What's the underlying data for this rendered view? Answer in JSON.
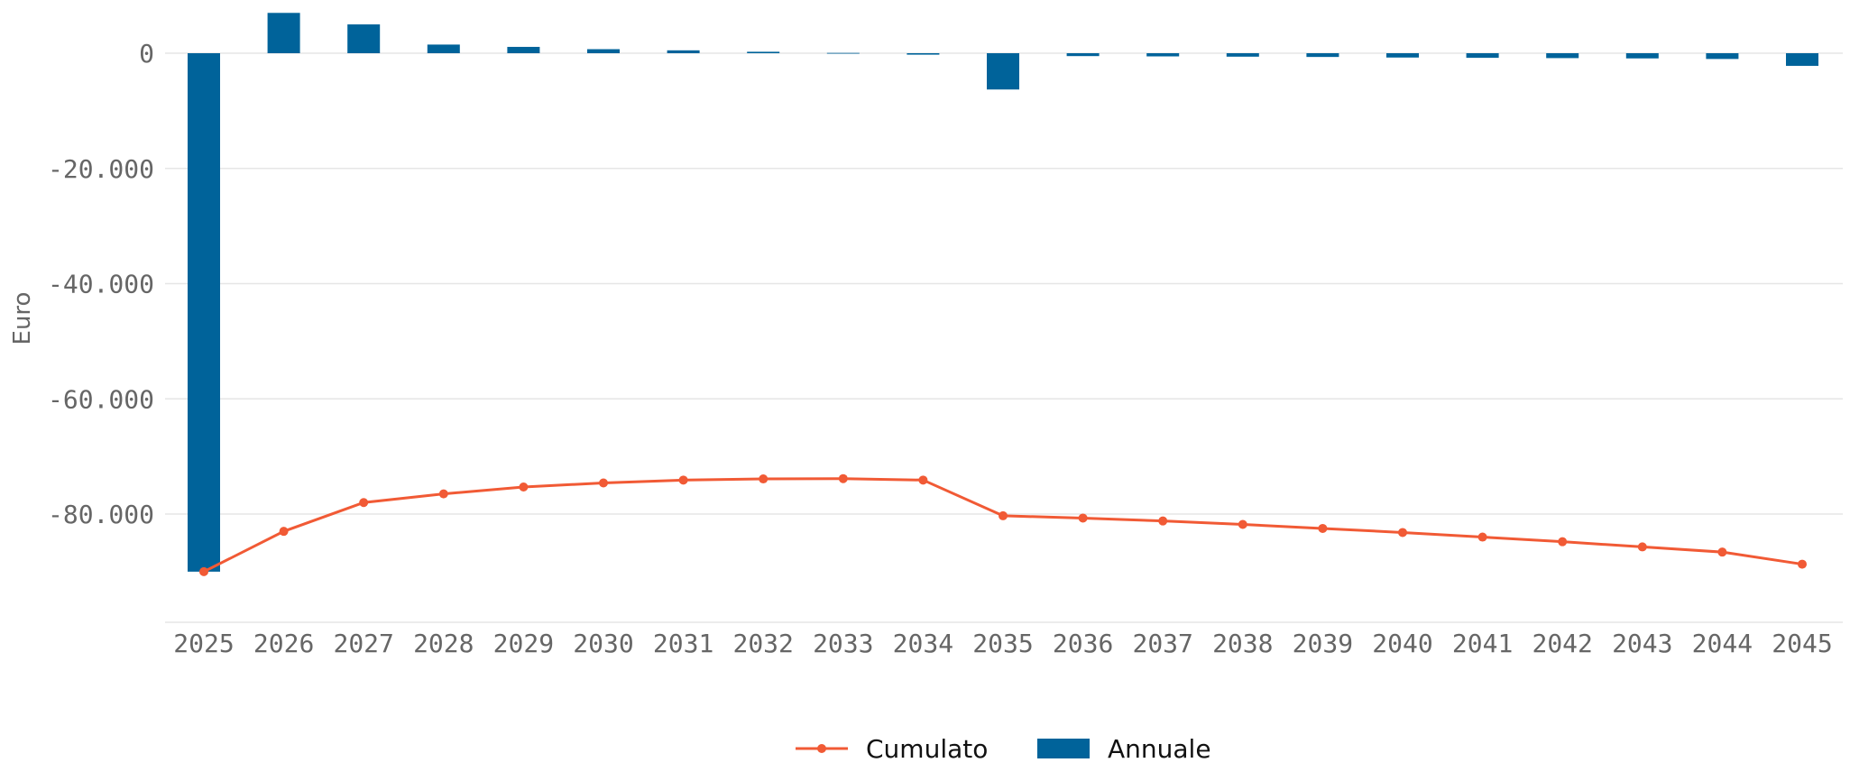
{
  "chart_data": {
    "type": "bar",
    "x": [
      "2025",
      "2026",
      "2027",
      "2028",
      "2029",
      "2030",
      "2031",
      "2032",
      "2033",
      "2034",
      "2035",
      "2036",
      "2037",
      "2038",
      "2039",
      "2040",
      "2041",
      "2042",
      "2043",
      "2044",
      "2045"
    ],
    "series": [
      {
        "name": "Annuale",
        "type": "bar",
        "color": "#00639a",
        "values": [
          -90000,
          7000,
          5000,
          1500,
          1100,
          700,
          500,
          250,
          50,
          -250,
          -6300,
          -500,
          -550,
          -600,
          -650,
          -750,
          -800,
          -850,
          -900,
          -1000,
          -2200
        ]
      },
      {
        "name": "Cumulato",
        "type": "line",
        "color": "#f15a35",
        "values": [
          -90000,
          -83000,
          -78000,
          -76500,
          -75300,
          -74600,
          -74100,
          -73900,
          -73850,
          -74100,
          -80300,
          -80700,
          -81200,
          -81800,
          -82500,
          -83200,
          -84000,
          -84800,
          -85700,
          -86600,
          -88700
        ]
      }
    ],
    "ylabel": "Euro",
    "xlabel": "",
    "title": "",
    "ylim": [
      -98000,
      7000
    ],
    "yticks": [
      0,
      -20000,
      -40000,
      -60000,
      -80000
    ],
    "ytick_labels": [
      "0",
      "-20.000",
      "-40.000",
      "-60.000",
      "-80.000"
    ],
    "grid": true,
    "legend": {
      "placement": "bottom-center",
      "items": [
        "Cumulato",
        "Annuale"
      ]
    }
  }
}
